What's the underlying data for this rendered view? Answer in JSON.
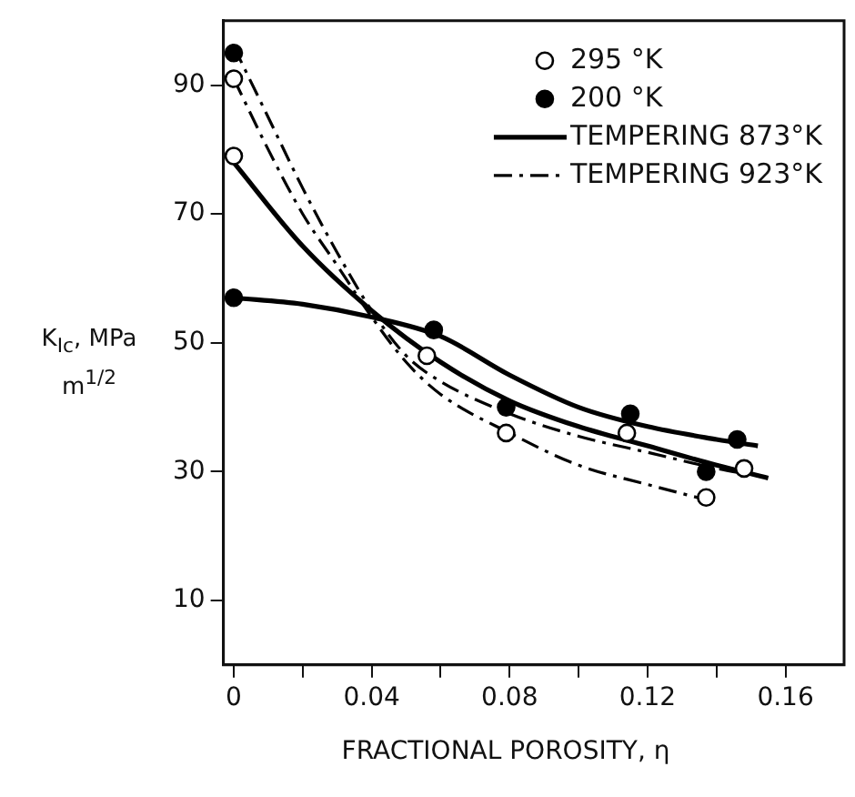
{
  "chart_data": {
    "type": "scatter",
    "xlabel": "FRACTIONAL POROSITY, η",
    "ylabel": "K$_{Ic}$, MPa m$^{1/2}$",
    "xlim": [
      -0.003,
      0.177
    ],
    "ylim": [
      0,
      100
    ],
    "xticks": [
      0,
      {
        "value": 0.02,
        "label": null
      },
      0.04,
      {
        "value": 0.06,
        "label": null
      },
      0.08,
      {
        "value": 0.1,
        "label": null
      },
      0.12,
      {
        "value": 0.14,
        "label": null
      },
      0.16
    ],
    "yticks": [
      10,
      30,
      50,
      70,
      90
    ],
    "grid": false,
    "legend": "top right",
    "series": [
      {
        "name": "295 °K",
        "type": "scatter",
        "marker": "circle",
        "color": "#ffffff",
        "x": [
          0,
          0,
          0.056,
          0.079,
          0.114,
          0.137,
          0.148
        ],
        "values": [
          91,
          79,
          48,
          36,
          36,
          26,
          30.5
        ]
      },
      {
        "name": "200 °K",
        "type": "scatter",
        "marker": "circle",
        "color": "#000000",
        "x": [
          0,
          0,
          0.058,
          0.079,
          0.115,
          0.137,
          0.146
        ],
        "values": [
          95,
          57,
          52,
          40,
          39,
          30,
          35
        ]
      },
      {
        "name": "TEMPERING 873°K",
        "type": "line",
        "marker": "none",
        "line_style": "solid",
        "color": "#000000",
        "x": [
          0,
          0.02,
          0.04,
          0.06,
          0.08,
          0.1,
          0.12,
          0.14,
          0.152
        ],
        "values": [
          57,
          56,
          54,
          51,
          45,
          40,
          37,
          35,
          34
        ]
      },
      {
        "type": "line",
        "marker": "none",
        "line_style": "solid",
        "color": "#000000",
        "x": [
          0,
          0.02,
          0.04,
          0.06,
          0.08,
          0.1,
          0.12,
          0.14,
          0.155
        ],
        "values": [
          78,
          65,
          55,
          47,
          41,
          37,
          34,
          31,
          29
        ]
      },
      {
        "name": "TEMPERING 923°K",
        "type": "line",
        "marker": "none",
        "line_style": "dashed",
        "color": "#000000",
        "x": [
          0,
          0.01,
          0.02,
          0.03,
          0.04,
          0.05,
          0.06,
          0.08,
          0.1,
          0.12,
          0.14,
          0.15
        ],
        "values": [
          96,
          85,
          74,
          64,
          55,
          48,
          44,
          39,
          35.5,
          33,
          30.5,
          29.5
        ]
      },
      {
        "type": "line",
        "marker": "none",
        "line_style": "dashed",
        "color": "#000000",
        "x": [
          0,
          0.01,
          0.02,
          0.03,
          0.04,
          0.05,
          0.06,
          0.08,
          0.1,
          0.12,
          0.138
        ],
        "values": [
          91,
          80,
          70,
          62,
          54,
          47,
          42,
          36,
          31,
          28,
          25.5
        ]
      }
    ]
  }
}
